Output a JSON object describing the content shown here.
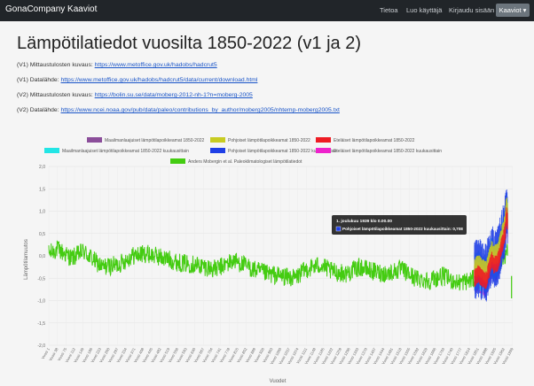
{
  "nav": {
    "brand": "GonaCompany Kaaviot",
    "links": [
      "Tietoa",
      "Luo käyttäjä",
      "Kirjaudu sisään"
    ],
    "dropdown": "Kaaviot ▾"
  },
  "page": {
    "title": "Lämpötilatiedot vuosilta 1850-2022 (v1 ja 2)",
    "info": [
      {
        "label": "(V1) Mittaustulosten kuvaus: ",
        "link": "https://www.metoffice.gov.uk/hadobs/hadcrut5"
      },
      {
        "label": "(V1) Datalähde: ",
        "link": "https://www.metoffice.gov.uk/hadobs/hadcrut5/data/current/download.html"
      },
      {
        "label": "(V2) Mittaustulosten kuvaus: ",
        "link": "https://bolin.su.se/data/moberg-2012-nh-1?n=moberg-2005"
      },
      {
        "label": "(V2) Datalähde: ",
        "link": "https://www.ncei.noaa.gov/pub/data/paleo/contributions_by_author/moberg2005/nhtemp-moberg2005.txt"
      }
    ]
  },
  "colors": {
    "moberg": "#44cc11",
    "global_annual": "#8b4e9a",
    "north_annual": "#c8cc22",
    "south_annual": "#ee1c24",
    "global_monthly": "#22e5e5",
    "north_monthly": "#1f3fe6",
    "south_monthly": "#ee22cc"
  },
  "chart_data": {
    "type": "line",
    "xlabel": "Vuodet",
    "ylabel": "Lämpötilamuutos",
    "ylim": [
      -2,
      2
    ],
    "yticks": [
      "2,0",
      "1,5",
      "1,0",
      "0,5",
      "0,0",
      "-0,5",
      "-1,0",
      "-1,5",
      "-2,0"
    ],
    "xticks": [
      "Vuosi 1",
      "Vuosi 38",
      "Vuosi 75",
      "Vuosi 112",
      "Vuosi 149",
      "Vuosi 186",
      "Vuosi 223",
      "Vuosi 260",
      "Vuosi 297",
      "Vuosi 334",
      "Vuosi 371",
      "Vuosi 408",
      "Vuosi 445",
      "Vuosi 482",
      "Vuosi 519",
      "Vuosi 556",
      "Vuosi 593",
      "Vuosi 630",
      "Vuosi 667",
      "Vuosi 704",
      "Vuosi 741",
      "Vuosi 778",
      "Vuosi 815",
      "Vuosi 852",
      "Vuosi 889",
      "Vuosi 926",
      "Vuosi 963",
      "Vuosi 1000",
      "Vuosi 1037",
      "Vuosi 1074",
      "Vuosi 1111",
      "Vuosi 1148",
      "Vuosi 1185",
      "Vuosi 1222",
      "Vuosi 1259",
      "Vuosi 1296",
      "Vuosi 1333",
      "Vuosi 1370",
      "Vuosi 1407",
      "Vuosi 1444",
      "Vuosi 1481",
      "Vuosi 1518",
      "Vuosi 1555",
      "Vuosi 1592",
      "Vuosi 1629",
      "Vuosi 1666",
      "Vuosi 1703",
      "Vuosi 1740",
      "Vuosi 1777",
      "Vuosi 1814",
      "Vuosi 1851",
      "Vuosi 1888",
      "Vuosi 1925",
      "Vuosi 1962",
      "Vuosi 1999"
    ],
    "legend": [
      {
        "name": "Maailmanlaajuiset lämpötilapoikkeamat 1850-2022",
        "color": "#8b4e9a"
      },
      {
        "name": "Pohjoiset lämpötilapoikkeamat 1850-2022",
        "color": "#c8cc22"
      },
      {
        "name": "Eteläiset lämpötilapoikkeamat 1850-2022",
        "color": "#ee1c24"
      },
      {
        "name": "Maailmanlaajuiset lämpötilapoikkeamat 1850-2022 kuukausittain",
        "color": "#22e5e5"
      },
      {
        "name": "Pohjoiset lämpötilapoikkeamat 1850-2022 kuukausittain",
        "color": "#1f3fe6"
      },
      {
        "name": "Eteläiset lämpötilapoikkeamat 1850-2022 kuukausittain",
        "color": "#ee22cc"
      },
      {
        "name": "Anders Mobergin et al. Paleoklimatologiset lämpötilatiedot",
        "color": "#44cc11"
      }
    ],
    "moberg_control": [
      [
        1,
        0.05
      ],
      [
        38,
        0.15
      ],
      [
        100,
        -0.05
      ],
      [
        150,
        0.1
      ],
      [
        230,
        -0.25
      ],
      [
        300,
        -0.2
      ],
      [
        360,
        0.0
      ],
      [
        420,
        0.05
      ],
      [
        500,
        -0.05
      ],
      [
        560,
        -0.15
      ],
      [
        640,
        -0.2
      ],
      [
        720,
        -0.3
      ],
      [
        800,
        -0.1
      ],
      [
        880,
        -0.3
      ],
      [
        940,
        -0.4
      ],
      [
        1000,
        -0.45
      ],
      [
        1060,
        -0.5
      ],
      [
        1110,
        -0.3
      ],
      [
        1170,
        -0.2
      ],
      [
        1220,
        -0.35
      ],
      [
        1280,
        -0.4
      ],
      [
        1340,
        -0.25
      ],
      [
        1400,
        -0.35
      ],
      [
        1460,
        -0.4
      ],
      [
        1520,
        -0.3
      ],
      [
        1580,
        -0.5
      ],
      [
        1640,
        -0.55
      ],
      [
        1700,
        -0.45
      ],
      [
        1760,
        -0.6
      ],
      [
        1820,
        -0.55
      ],
      [
        1870,
        -0.4
      ],
      [
        1930,
        -0.2
      ],
      [
        1979,
        0.1
      ],
      [
        2000,
        -0.6
      ]
    ],
    "hadcrut_annual_control": [
      [
        1850,
        -0.4
      ],
      [
        1870,
        -0.3
      ],
      [
        1890,
        -0.4
      ],
      [
        1910,
        -0.45
      ],
      [
        1940,
        0.0
      ],
      [
        1950,
        -0.1
      ],
      [
        1970,
        -0.05
      ],
      [
        1980,
        0.1
      ],
      [
        1990,
        0.3
      ],
      [
        2000,
        0.45
      ],
      [
        2010,
        0.65
      ],
      [
        2016,
        1.0
      ],
      [
        2022,
        0.85
      ]
    ],
    "tooltip": {
      "title": "1. joulukuu 1939 klo 0.00.00",
      "series": "Pohjoiset lämpötilapoikkeamat 1850-2022 kuukausittain",
      "value": "0,708"
    }
  }
}
